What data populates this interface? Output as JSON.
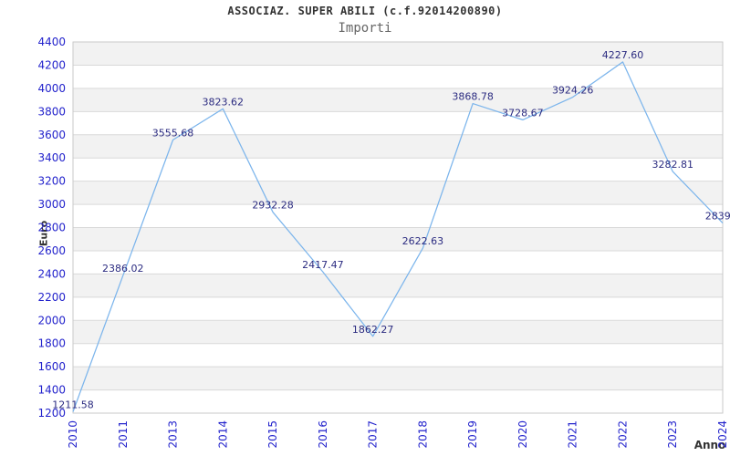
{
  "header": {
    "title": "ASSOCIAZ. SUPER ABILI (c.f.92014200890)",
    "subtitle": "Importi"
  },
  "chart_data": {
    "type": "line",
    "title": "ASSOCIAZ. SUPER ABILI (c.f.92014200890)",
    "subtitle": "Importi",
    "xlabel": "Anno",
    "ylabel": "Euro",
    "categories": [
      "2010",
      "2011",
      "2013",
      "2014",
      "2015",
      "2016",
      "2017",
      "2018",
      "2019",
      "2020",
      "2021",
      "2022",
      "2023",
      "2024"
    ],
    "series": [
      {
        "name": "Importi",
        "values": [
          1211.58,
          2386.02,
          3555.68,
          3823.62,
          2932.28,
          2417.47,
          1862.27,
          2622.63,
          3868.78,
          3728.67,
          3924.26,
          4227.6,
          3282.81,
          2839.0
        ],
        "point_labels": [
          "1211.58",
          "2386.02",
          "3555.68",
          "3823.62",
          "2932.28",
          "2417.47",
          "1862.27",
          "2622.63",
          "3868.78",
          "3728.67",
          "3924.26",
          "4227.60",
          "3282.81",
          "2839.0"
        ]
      }
    ],
    "ylim": [
      1200,
      4400
    ],
    "ytick_step": 200,
    "grid": true,
    "alternating_bands": true,
    "legend": "none",
    "markers": "none",
    "colors": {
      "line": "#7cb5ec",
      "point_label": "#2b2b80",
      "tick_label": "#2323cc",
      "band": "#f2f2f2",
      "gridline": "#d9d9d9",
      "plot_border": "#c9c9c9",
      "title": "#333333",
      "subtitle": "#666666",
      "axis_title": "#333333"
    }
  }
}
